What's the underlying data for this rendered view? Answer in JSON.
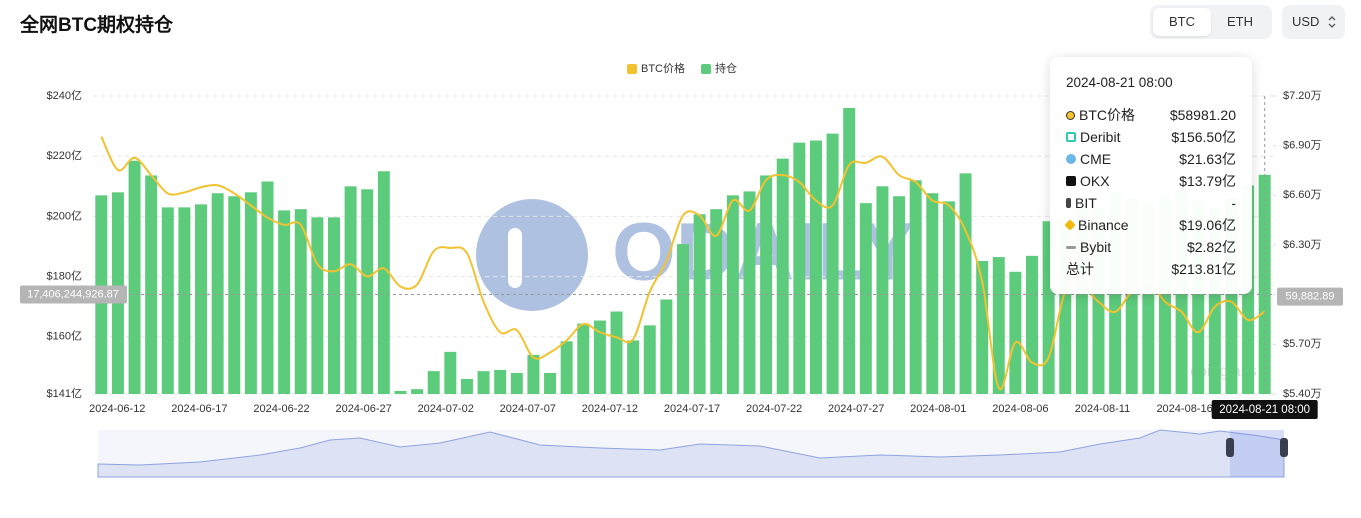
{
  "header": {
    "title": "全网BTC期权持仓",
    "tabs": [
      "BTC",
      "ETH"
    ],
    "currency": "USD"
  },
  "chart_data": {
    "type": "bar",
    "grid": true,
    "categories": [
      "2024-06-12",
      null,
      null,
      null,
      null,
      "2024-06-17",
      null,
      null,
      null,
      null,
      "2024-06-22",
      null,
      null,
      null,
      null,
      "2024-06-27",
      null,
      null,
      null,
      null,
      "2024-07-02",
      null,
      null,
      null,
      null,
      "2024-07-07",
      null,
      null,
      null,
      null,
      "2024-07-12",
      null,
      null,
      null,
      null,
      "2024-07-17",
      null,
      null,
      null,
      null,
      "2024-07-22",
      null,
      null,
      null,
      null,
      "2024-07-27",
      null,
      null,
      null,
      null,
      "2024-08-01",
      null,
      null,
      null,
      null,
      "2024-08-06",
      null,
      null,
      null,
      null,
      "2024-08-11",
      null,
      null,
      null,
      null,
      "2024-08-16",
      null,
      null,
      null,
      null,
      null
    ],
    "series": [
      {
        "name": "BTC价格",
        "type": "line",
        "axis": "y2",
        "color": "#f2c230",
        "values": [
          6.955,
          6.753,
          6.827,
          6.722,
          6.612,
          6.618,
          6.649,
          6.661,
          6.612,
          6.539,
          6.465,
          6.422,
          6.422,
          6.184,
          6.141,
          6.184,
          6.11,
          6.159,
          6.049,
          6.061,
          6.263,
          6.282,
          6.251,
          5.957,
          5.773,
          5.786,
          5.62,
          5.651,
          5.724,
          5.822,
          5.773,
          5.743,
          5.731,
          6.018,
          6.202,
          6.478,
          6.478,
          6.355,
          6.569,
          6.508,
          6.692,
          6.722,
          6.68,
          6.569,
          6.539,
          6.784,
          6.796,
          6.833,
          6.722,
          6.68,
          6.569,
          6.539,
          6.386,
          6.08,
          5.437,
          5.712,
          5.59,
          5.62,
          6.018,
          6.049,
          5.957,
          5.896,
          6.018,
          6.08,
          5.957,
          5.896,
          5.773,
          5.927,
          5.957,
          5.847,
          5.898
        ]
      },
      {
        "name": "持仓",
        "type": "bar",
        "color": "#5ccb7b",
        "values": [
          207,
          208,
          218.5,
          213.6,
          203,
          203,
          204,
          207.7,
          206.7,
          208,
          211.6,
          202,
          202.4,
          199.7,
          199.7,
          210,
          209,
          215,
          142,
          142.6,
          148.6,
          155,
          146,
          148.6,
          149,
          148,
          154,
          148,
          158.5,
          164.4,
          165.4,
          168.4,
          158.8,
          163.8,
          172.4,
          190.8,
          200.7,
          202.4,
          207,
          208.3,
          213.6,
          219.2,
          224.5,
          225.2,
          227.5,
          236,
          204.4,
          210,
          206.7,
          212,
          207.7,
          205,
          214.3,
          185.2,
          186.5,
          181.6,
          186.9,
          198.4,
          198.4,
          205,
          203,
          208,
          206,
          204,
          207,
          209,
          205,
          203,
          206,
          210.3,
          213.81
        ]
      }
    ],
    "ylim": [
      141,
      240
    ],
    "yticks": [
      {
        "value": 141,
        "label": "$141亿"
      },
      {
        "value": 160,
        "label": "$160亿"
      },
      {
        "value": 180,
        "label": "$180亿"
      },
      {
        "value": 200,
        "label": "$200亿"
      },
      {
        "value": 220,
        "label": "$220亿"
      },
      {
        "value": 240,
        "label": "$240亿"
      }
    ],
    "y2lim": [
      5.4,
      7.2
    ],
    "y2ticks": [
      {
        "value": 5.4,
        "label": "$5.40万"
      },
      {
        "value": 5.7,
        "label": "$5.70万"
      },
      {
        "value": 6.0,
        "label": "$6.00万"
      },
      {
        "value": 6.3,
        "label": "$6.30万"
      },
      {
        "value": 6.6,
        "label": "$6.60万"
      },
      {
        "value": 6.9,
        "label": "$6.90万"
      },
      {
        "value": 7.2,
        "label": "$7.20万"
      }
    ],
    "crosshair": {
      "x_label": "2024-08-21 08:00",
      "y_label": {
        "value": 174.06,
        "label": "17,406,244,926.87"
      },
      "y2_label": {
        "value": 5.988,
        "label": "59,882.89"
      }
    }
  },
  "tooltip": {
    "title": "2024-08-21 08:00",
    "rows": [
      {
        "name": "BTC价格",
        "value": "$58981.20"
      },
      {
        "name": "Deribit",
        "value": "$156.50亿"
      },
      {
        "name": "CME",
        "value": "$21.63亿"
      },
      {
        "name": "OKX",
        "value": "$13.79亿"
      },
      {
        "name": "BIT",
        "value": "-"
      },
      {
        "name": "Binance",
        "value": "$19.06亿"
      },
      {
        "name": "Bybit",
        "value": "$2.82亿"
      },
      {
        "name": "总计",
        "value": "$213.81亿"
      }
    ]
  },
  "watermarks": [
    "ODAILY",
    "coinglass"
  ]
}
